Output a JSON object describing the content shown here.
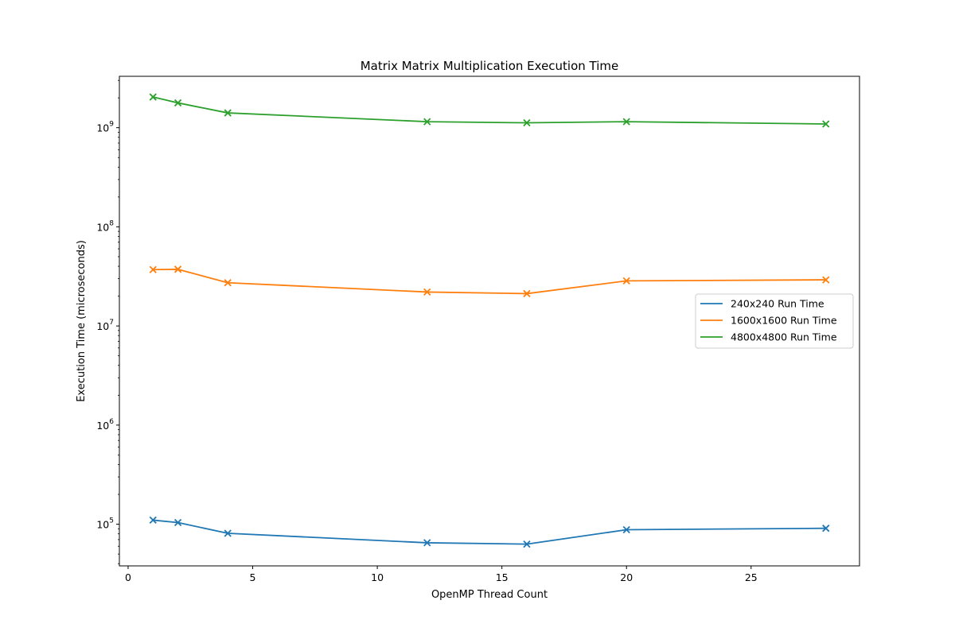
{
  "chart_data": {
    "type": "line",
    "title": "Matrix Matrix Multiplication Execution Time",
    "xlabel": "OpenMP Thread Count",
    "ylabel": "Execution Time (microseconds)",
    "y_scale": "log",
    "xlim": [
      -0.35,
      29.35
    ],
    "ylim": [
      38000,
      3300000000
    ],
    "x_ticks": [
      0,
      5,
      10,
      15,
      20,
      25
    ],
    "y_ticks": [
      {
        "value": 100000,
        "base": "10",
        "exp": "5"
      },
      {
        "value": 1000000,
        "base": "10",
        "exp": "6"
      },
      {
        "value": 10000000,
        "base": "10",
        "exp": "7"
      },
      {
        "value": 100000000,
        "base": "10",
        "exp": "8"
      },
      {
        "value": 1000000000,
        "base": "10",
        "exp": "9"
      }
    ],
    "grid": false,
    "legend_position": "center-right",
    "marker": "x",
    "x": [
      1,
      2,
      4,
      12,
      16,
      20,
      28
    ],
    "series": [
      {
        "name": "240x240 Run Time",
        "color": "#1f77b4",
        "values": [
          110000,
          104000,
          81000,
          65000,
          63000,
          88000,
          91000
        ]
      },
      {
        "name": "1600x1600 Run Time",
        "color": "#ff7f0e",
        "values": [
          37000000,
          37300000,
          27300000,
          22000000,
          21200000,
          28500000,
          29200000
        ]
      },
      {
        "name": "4800x4800 Run Time",
        "color": "#2ca02c",
        "values": [
          2040000000,
          1780000000,
          1410000000,
          1150000000,
          1120000000,
          1150000000,
          1090000000
        ]
      }
    ]
  }
}
